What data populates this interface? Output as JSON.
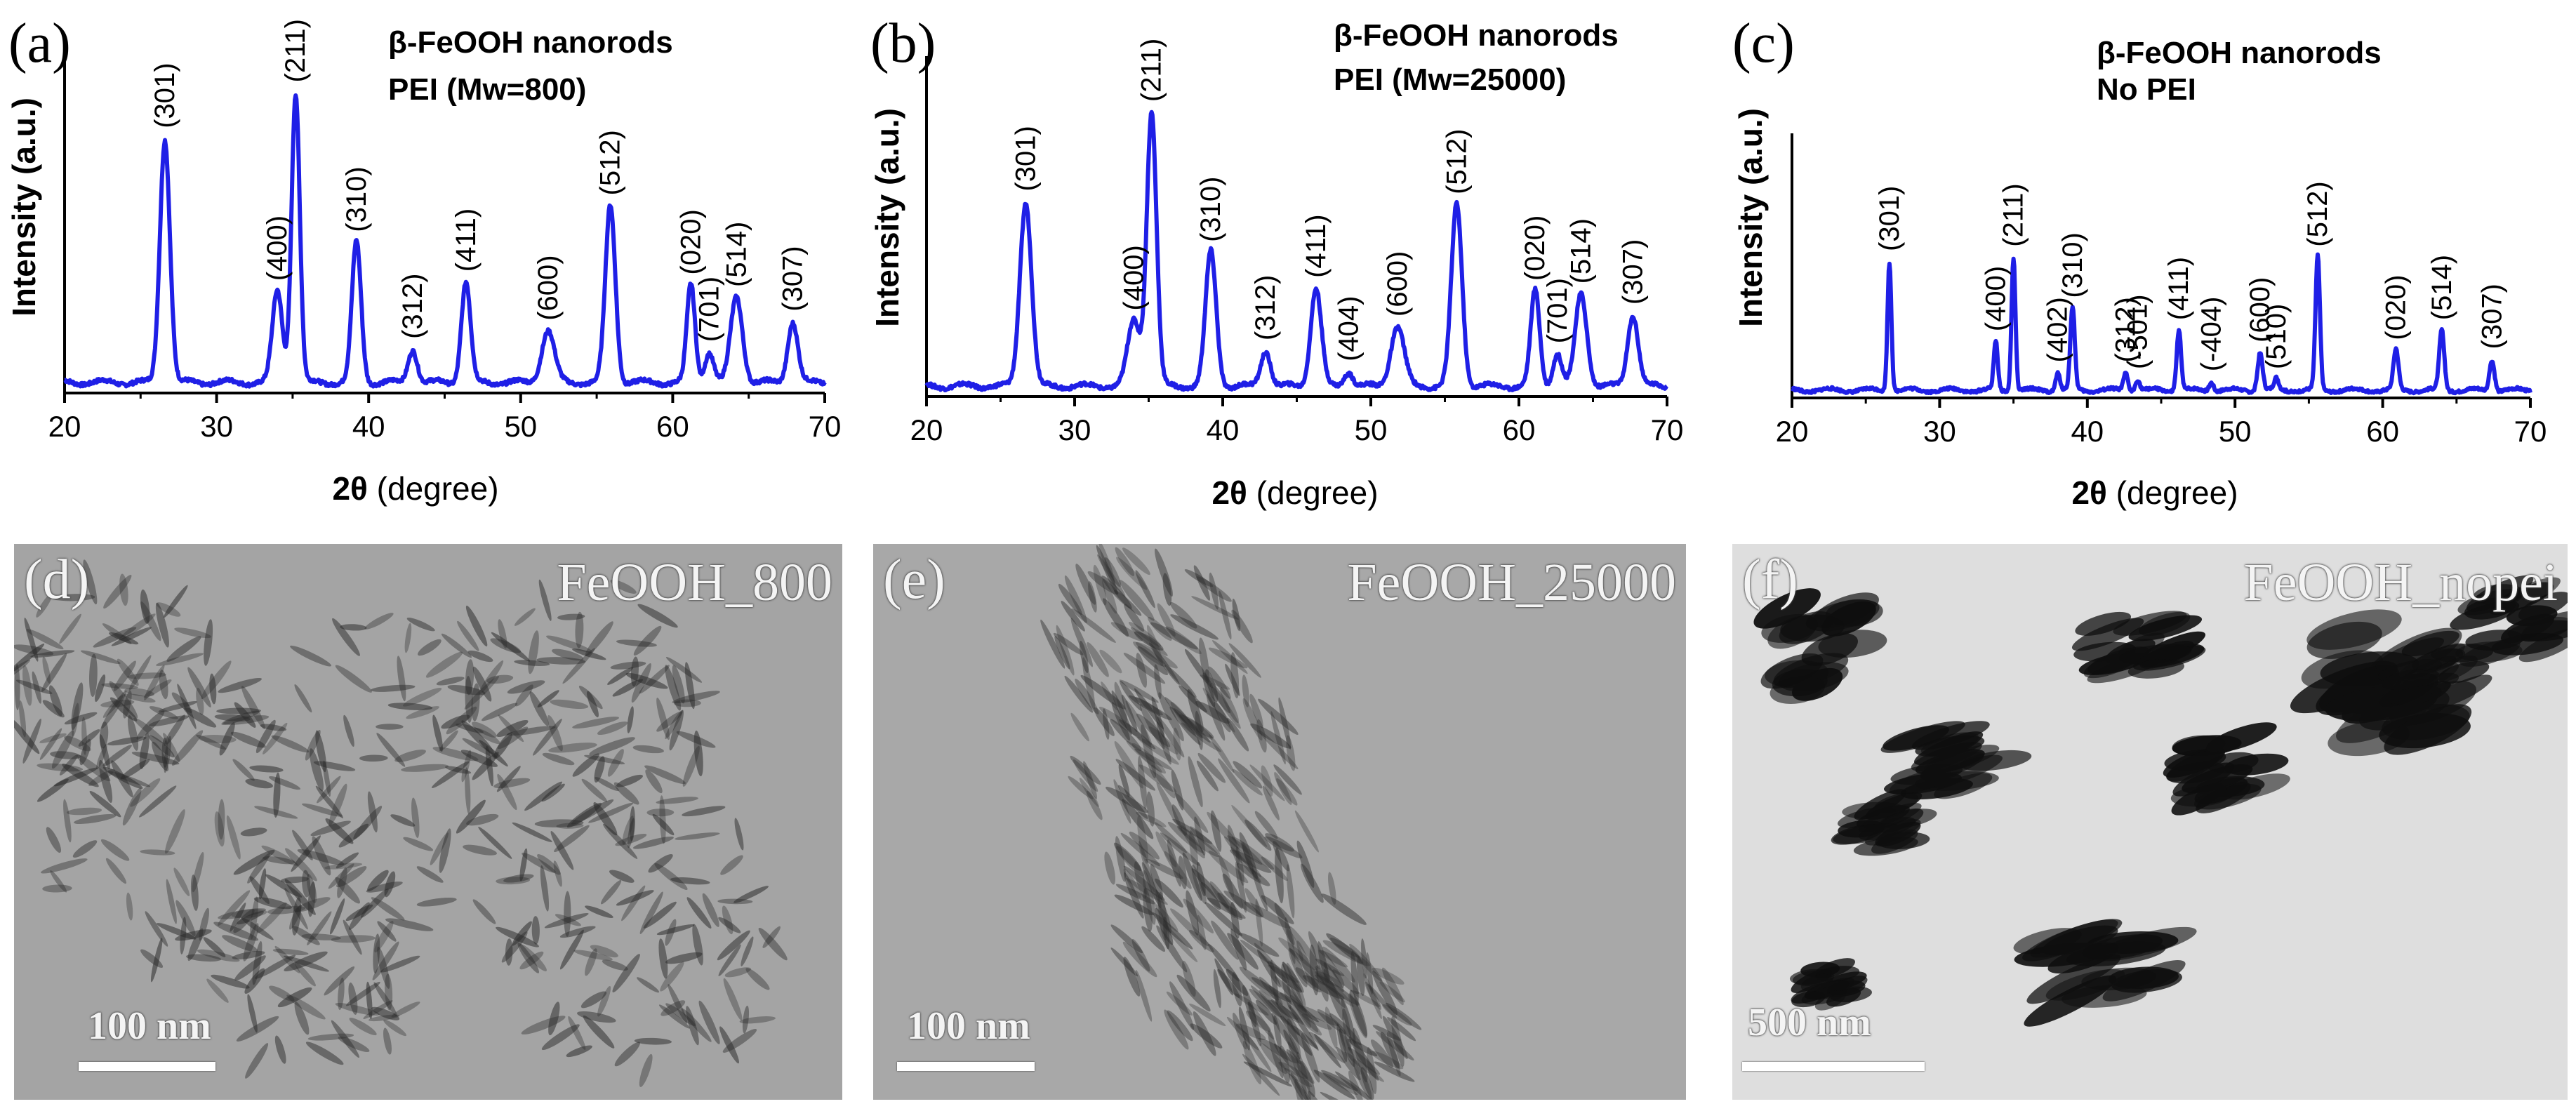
{
  "chart_data": [
    {
      "type": "line",
      "panel_letter": "(a)",
      "title_lines": [
        "β-FeOOH nanorods",
        "PEI (Mw=800)"
      ],
      "xlabel": "2θ (degree)",
      "xlabel_main": "2θ ",
      "xlabel_unit": "(degree)",
      "ylabel": "Intensity (a.u.)",
      "xlim": [
        20,
        70
      ],
      "ylim": [
        0,
        1
      ],
      "xticks": [
        20,
        30,
        40,
        50,
        60,
        70
      ],
      "line_color": "#1f1fe6",
      "peaks": [
        {
          "label": "(301)",
          "x": 26.6,
          "h": 0.8,
          "w": 0.55
        },
        {
          "label": "(400)",
          "x": 34.0,
          "h": 0.3,
          "w": 0.55
        },
        {
          "label": "(211)",
          "x": 35.2,
          "h": 0.95,
          "w": 0.45
        },
        {
          "label": "(310)",
          "x": 39.2,
          "h": 0.46,
          "w": 0.5
        },
        {
          "label": "(312)",
          "x": 42.9,
          "h": 0.11,
          "w": 0.5
        },
        {
          "label": "(411)",
          "x": 46.4,
          "h": 0.33,
          "w": 0.5
        },
        {
          "label": "(600)",
          "x": 51.8,
          "h": 0.17,
          "w": 0.7
        },
        {
          "label": "(512)",
          "x": 55.9,
          "h": 0.58,
          "w": 0.55
        },
        {
          "label": "(020)",
          "x": 61.2,
          "h": 0.32,
          "w": 0.45
        },
        {
          "label": "(701)",
          "x": 62.4,
          "h": 0.1,
          "w": 0.5
        },
        {
          "label": "(514)",
          "x": 64.2,
          "h": 0.28,
          "w": 0.65
        },
        {
          "label": "(307)",
          "x": 67.9,
          "h": 0.2,
          "w": 0.55
        }
      ]
    },
    {
      "type": "line",
      "panel_letter": "(b)",
      "title_lines": [
        "β-FeOOH nanorods",
        "PEI (Mw=25000)"
      ],
      "xlabel": "2θ (degree)",
      "xlabel_main": "2θ ",
      "xlabel_unit": "(degree)",
      "ylabel": "Intensity (a.u.)",
      "xlim": [
        20,
        70
      ],
      "ylim": [
        0,
        1
      ],
      "xticks": [
        20,
        30,
        40,
        50,
        60,
        70
      ],
      "line_color": "#1f1fe6",
      "peaks": [
        {
          "label": "(301)",
          "x": 26.7,
          "h": 0.62,
          "w": 0.65
        },
        {
          "label": "(400)",
          "x": 34.0,
          "h": 0.22,
          "w": 0.7
        },
        {
          "label": "(211)",
          "x": 35.2,
          "h": 0.92,
          "w": 0.55
        },
        {
          "label": "(310)",
          "x": 39.2,
          "h": 0.45,
          "w": 0.6
        },
        {
          "label": "(312)",
          "x": 42.9,
          "h": 0.12,
          "w": 0.55
        },
        {
          "label": "(411)",
          "x": 46.3,
          "h": 0.33,
          "w": 0.6
        },
        {
          "label": "(404)",
          "x": 48.5,
          "h": 0.05,
          "w": 0.5
        },
        {
          "label": "(600)",
          "x": 51.8,
          "h": 0.2,
          "w": 0.75
        },
        {
          "label": "(512)",
          "x": 55.8,
          "h": 0.61,
          "w": 0.6
        },
        {
          "label": "(020)",
          "x": 61.1,
          "h": 0.32,
          "w": 0.5
        },
        {
          "label": "(701)",
          "x": 62.6,
          "h": 0.11,
          "w": 0.5
        },
        {
          "label": "(514)",
          "x": 64.2,
          "h": 0.31,
          "w": 0.65
        },
        {
          "label": "(307)",
          "x": 67.7,
          "h": 0.24,
          "w": 0.6
        }
      ]
    },
    {
      "type": "line",
      "panel_letter": "(c)",
      "title_lines": [
        "β-FeOOH nanorods",
        "No PEI"
      ],
      "xlabel": "2θ (degree)",
      "xlabel_main": "2θ ",
      "xlabel_unit": "(degree)",
      "ylabel": "Intensity (a.u.)",
      "xlim": [
        20,
        70
      ],
      "ylim": [
        0,
        1
      ],
      "xticks": [
        20,
        30,
        40,
        50,
        60,
        70
      ],
      "line_color": "#1f1fe6",
      "peaks": [
        {
          "label": "(301)",
          "x": 26.6,
          "h": 0.58,
          "w": 0.22
        },
        {
          "label": "(400)",
          "x": 33.8,
          "h": 0.22,
          "w": 0.22
        },
        {
          "label": "(211)",
          "x": 35.0,
          "h": 0.6,
          "w": 0.22
        },
        {
          "label": "(402)",
          "x": 38.0,
          "h": 0.08,
          "w": 0.25
        },
        {
          "label": "(310)",
          "x": 39.0,
          "h": 0.37,
          "w": 0.25
        },
        {
          "label": "(312)",
          "x": 42.6,
          "h": 0.08,
          "w": 0.25
        },
        {
          "label": "(-501)",
          "x": 43.4,
          "h": 0.05,
          "w": 0.25
        },
        {
          "label": "(411)",
          "x": 46.2,
          "h": 0.27,
          "w": 0.25
        },
        {
          "label": "(-404)",
          "x": 48.4,
          "h": 0.04,
          "w": 0.25
        },
        {
          "label": "(600)",
          "x": 51.7,
          "h": 0.17,
          "w": 0.28
        },
        {
          "label": "(510)",
          "x": 52.8,
          "h": 0.05,
          "w": 0.25
        },
        {
          "label": "(512)",
          "x": 55.6,
          "h": 0.6,
          "w": 0.25
        },
        {
          "label": "(020)",
          "x": 60.9,
          "h": 0.18,
          "w": 0.28
        },
        {
          "label": "(514)",
          "x": 64.0,
          "h": 0.27,
          "w": 0.28
        },
        {
          "label": "(307)",
          "x": 67.4,
          "h": 0.14,
          "w": 0.28
        }
      ]
    }
  ],
  "tem_panels": [
    {
      "letter": "(d)",
      "name": "FeOOH_800",
      "scale": "100 nm"
    },
    {
      "letter": "(e)",
      "name": "FeOOH_25000",
      "scale": "100 nm"
    },
    {
      "letter": "(f)",
      "name": "FeOOH_nopei",
      "scale": "500 nm"
    }
  ]
}
